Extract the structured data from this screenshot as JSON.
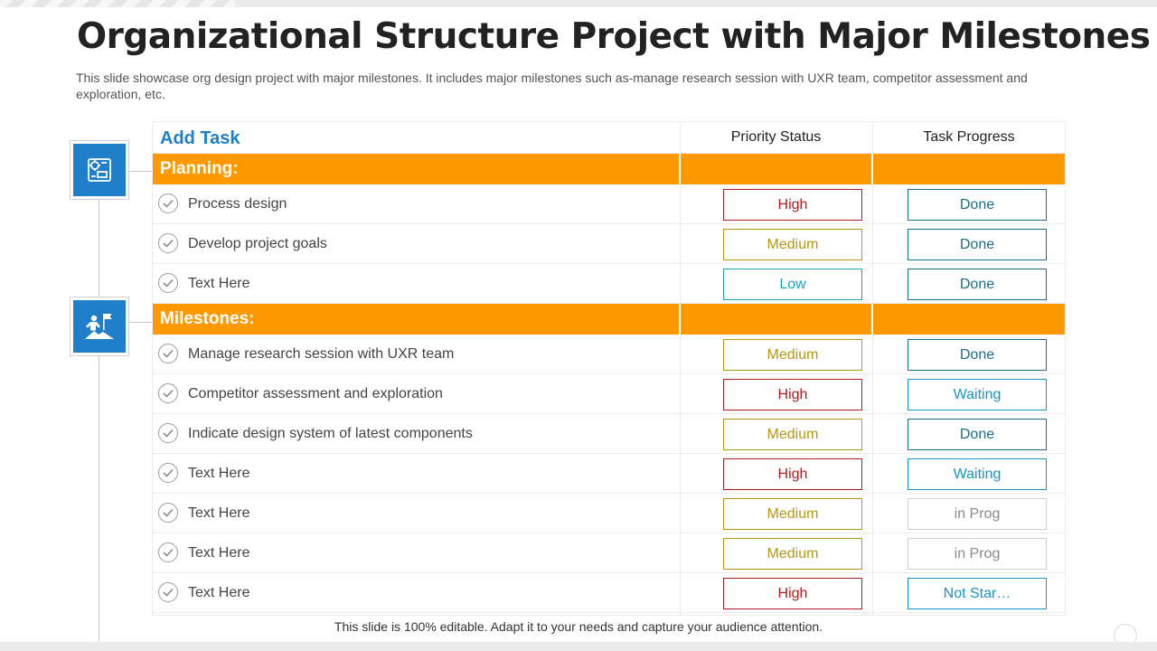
{
  "slide": {
    "title": "Organizational Structure Project with Major Milestones",
    "subtitle": "This slide showcase org design project with major milestones. It includes major milestones such as-manage research session with UXR team, competitor assessment and exploration,  etc.",
    "footer": "This slide is 100% editable. Adapt it to your needs and capture your audience attention."
  },
  "table": {
    "header": {
      "add_task": "Add Task",
      "priority_status": "Priority Status",
      "task_progress": "Task Progress"
    },
    "sections": [
      {
        "label": "Planning:",
        "icon": "planning-diagram-icon",
        "tasks": [
          {
            "name": "Process design",
            "priority": "High",
            "progress": "Done"
          },
          {
            "name": "Develop project goals",
            "priority": "Medium",
            "progress": "Done"
          },
          {
            "name": "Text Here",
            "priority": "Low",
            "progress": "Done"
          }
        ]
      },
      {
        "label": "Milestones:",
        "icon": "milestone-flag-icon",
        "tasks": [
          {
            "name": "Manage research session with UXR team",
            "priority": "Medium",
            "progress": "Done"
          },
          {
            "name": "Competitor assessment and exploration",
            "priority": "High",
            "progress": "Waiting"
          },
          {
            "name": " Indicate design system of latest components",
            "priority": "Medium",
            "progress": "Done"
          },
          {
            "name": " Text Here",
            "priority": "High",
            "progress": "Waiting"
          },
          {
            "name": "Text Here",
            "priority": "Medium",
            "progress": "in Prog"
          },
          {
            "name": "Text Here",
            "priority": "Medium",
            "progress": "in Prog"
          },
          {
            "name": "Text Here",
            "priority": "High",
            "progress": "Not Star…"
          }
        ]
      }
    ]
  },
  "colors": {
    "accent_blue": "#1f7fc9",
    "section_orange": "#ff9900",
    "priority": {
      "High": "#b01c1c",
      "Medium": "#b8960f",
      "Low": "#1aa3b4"
    },
    "progress": {
      "Done": "#1b6d8c",
      "Waiting": "#1a93c4",
      "in Prog": "#8a8a8a",
      "Not Star…": "#1a93c4"
    },
    "progress_border": {
      "Done": "#1b6d8c",
      "Waiting": "#1a93c4",
      "in Prog": "#cfcfcf",
      "Not Star…": "#1a93c4"
    }
  }
}
